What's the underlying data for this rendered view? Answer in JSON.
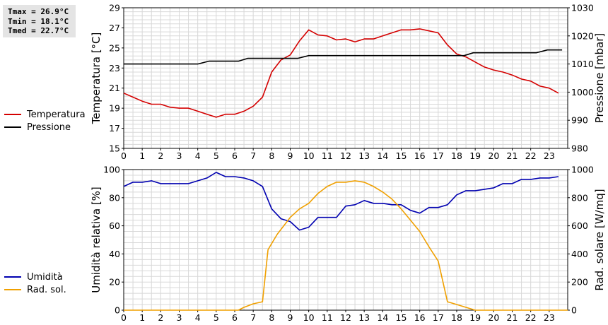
{
  "stats": {
    "tmax": "Tmax = 26.9°C",
    "tmin": "Tmin = 18.1°C",
    "tmed": "Tmed = 22.7°C"
  },
  "legend_top": [
    {
      "label": "Temperatura",
      "color": "#d40000"
    },
    {
      "label": "Pressione",
      "color": "#000000"
    }
  ],
  "legend_bottom": [
    {
      "label": "Umidità",
      "color": "#0000b0"
    },
    {
      "label": "Rad. sol.",
      "color": "#f0a000"
    }
  ],
  "chart_data": [
    {
      "type": "line",
      "x_ticks": [
        "0",
        "1",
        "2",
        "3",
        "4",
        "5",
        "6",
        "7",
        "8",
        "9",
        "10",
        "11",
        "12",
        "13",
        "14",
        "15",
        "16",
        "17",
        "18",
        "19",
        "20",
        "21",
        "22",
        "23"
      ],
      "xlim": [
        0,
        24
      ],
      "ylabel": "Temperatura [°C]",
      "ylim": [
        15,
        29
      ],
      "y_ticks": [
        "15",
        "17",
        "19",
        "21",
        "23",
        "25",
        "27",
        "29"
      ],
      "y2label": "Pressione [mbar]",
      "y2lim": [
        980,
        1030
      ],
      "y2_ticks": [
        "980",
        "990",
        "1000",
        "1010",
        "1020",
        "1030"
      ],
      "grid": true,
      "series": [
        {
          "name": "Temperatura",
          "axis": "left",
          "color": "#d40000",
          "x": [
            0,
            0.5,
            1,
            1.5,
            2,
            2.5,
            3,
            3.5,
            4,
            4.5,
            5,
            5.5,
            6,
            6.5,
            7,
            7.5,
            8,
            8.5,
            9,
            9.5,
            10,
            10.5,
            11,
            11.5,
            12,
            12.5,
            13,
            13.5,
            14,
            14.5,
            15,
            15.5,
            16,
            16.5,
            17,
            17.5,
            18,
            18.5,
            19,
            19.5,
            20,
            20.5,
            21,
            21.5,
            22,
            22.5,
            23,
            23.5
          ],
          "y": [
            20.5,
            20.1,
            19.7,
            19.4,
            19.4,
            19.1,
            19.0,
            19.0,
            18.7,
            18.4,
            18.1,
            18.4,
            18.4,
            18.7,
            19.2,
            20.1,
            22.6,
            23.8,
            24.3,
            25.7,
            26.8,
            26.3,
            26.2,
            25.8,
            25.9,
            25.6,
            25.9,
            25.9,
            26.2,
            26.5,
            26.8,
            26.8,
            26.9,
            26.7,
            26.5,
            25.3,
            24.4,
            24.1,
            23.6,
            23.1,
            22.8,
            22.6,
            22.3,
            21.9,
            21.7,
            21.2,
            21.0,
            20.5
          ]
        },
        {
          "name": "Pressione",
          "axis": "right",
          "color": "#000000",
          "x": [
            0,
            4,
            4.6,
            6.2,
            6.7,
            9.4,
            10,
            18.4,
            18.9,
            22.3,
            22.9,
            23.7
          ],
          "y": [
            1010,
            1010,
            1011,
            1011,
            1012,
            1012,
            1013,
            1013,
            1014,
            1014,
            1015,
            1015
          ]
        }
      ]
    },
    {
      "type": "line",
      "x_ticks": [
        "0",
        "1",
        "2",
        "3",
        "4",
        "5",
        "6",
        "7",
        "8",
        "9",
        "10",
        "11",
        "12",
        "13",
        "14",
        "15",
        "16",
        "17",
        "18",
        "19",
        "20",
        "21",
        "22",
        "23"
      ],
      "xlim": [
        0,
        24
      ],
      "ylabel": "Umidità relativa [%]",
      "ylim": [
        0,
        100
      ],
      "y_ticks": [
        "0",
        "20",
        "40",
        "60",
        "80",
        "100"
      ],
      "y2label": "Rad. solare [W/mq]",
      "y2lim": [
        0,
        1000
      ],
      "y2_ticks": [
        "0",
        "200",
        "400",
        "600",
        "800",
        "1000"
      ],
      "grid": true,
      "series": [
        {
          "name": "Umidità",
          "axis": "left",
          "color": "#0000b0",
          "x": [
            0,
            0.5,
            1,
            1.5,
            2,
            2.5,
            3,
            3.5,
            4,
            4.5,
            5,
            5.5,
            6,
            6.5,
            7,
            7.5,
            8,
            8.5,
            9,
            9.5,
            10,
            10.5,
            11,
            11.5,
            12,
            12.5,
            13,
            13.5,
            14,
            14.5,
            15,
            15.5,
            16,
            16.5,
            17,
            17.5,
            18,
            18.5,
            19,
            19.5,
            20,
            20.5,
            21,
            21.5,
            22,
            22.5,
            23,
            23.5
          ],
          "y": [
            88,
            91,
            91,
            92,
            90,
            90,
            90,
            90,
            92,
            94,
            98,
            95,
            95,
            94,
            92,
            88,
            72,
            65,
            63,
            57,
            59,
            66,
            66,
            66,
            74,
            75,
            78,
            76,
            76,
            75,
            75,
            71,
            69,
            73,
            73,
            75,
            82,
            85,
            85,
            86,
            87,
            90,
            90,
            93,
            93,
            94,
            94,
            95
          ]
        },
        {
          "name": "Rad. sol.",
          "axis": "right",
          "color": "#f0a000",
          "x": [
            0,
            6.2,
            6.5,
            7,
            7.5,
            7.8,
            8.3,
            9,
            9.5,
            10,
            10.5,
            11,
            11.5,
            12,
            12.5,
            13,
            13.5,
            14,
            14.5,
            15,
            15.5,
            16,
            16.5,
            17,
            17.5,
            18,
            18.5,
            19,
            24
          ],
          "y": [
            0,
            0,
            20,
            45,
            60,
            430,
            540,
            660,
            720,
            760,
            830,
            880,
            910,
            910,
            920,
            910,
            880,
            840,
            790,
            720,
            640,
            560,
            450,
            350,
            60,
            40,
            20,
            0,
            0
          ]
        }
      ]
    }
  ]
}
